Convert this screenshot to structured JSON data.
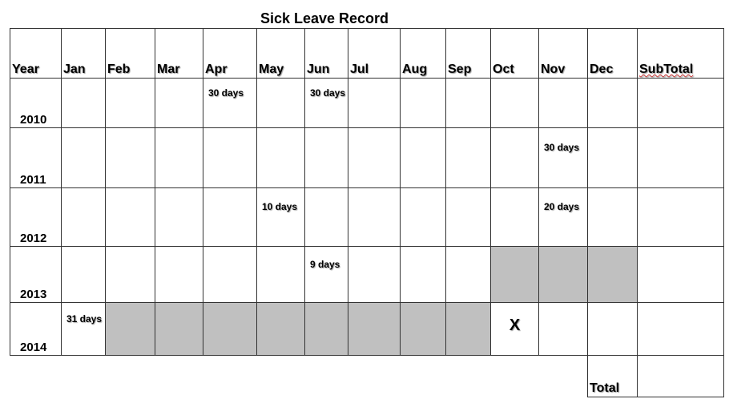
{
  "title": "Sick Leave Record",
  "headers": [
    "Year",
    "Jan",
    "Feb",
    "Mar",
    "Apr",
    "May",
    "Jun",
    "Jul",
    "Aug",
    "Sep",
    "Oct",
    "Nov",
    "Dec",
    "SubTotal"
  ],
  "rows": [
    {
      "year": "2010",
      "values": {
        "Apr": "30 days",
        "Jun": "30 days"
      },
      "shaded": []
    },
    {
      "year": "2011",
      "values": {
        "Nov": "30 days"
      },
      "shaded": []
    },
    {
      "year": "2012",
      "values": {
        "May": "10 days",
        "Nov": "20 days"
      },
      "shaded": []
    },
    {
      "year": "2013",
      "values": {
        "Jun": "9 days"
      },
      "shaded": [
        "Oct",
        "Nov",
        "Dec"
      ]
    },
    {
      "year": "2014",
      "values": {
        "Jan": "31 days",
        "Oct": "X"
      },
      "shaded": [
        "Feb",
        "Mar",
        "Apr",
        "May",
        "Jun",
        "Jul",
        "Aug",
        "Sep"
      ]
    }
  ],
  "total_label": "Total",
  "colors": {
    "shaded": "#c0c0c0",
    "border": "#333333"
  }
}
